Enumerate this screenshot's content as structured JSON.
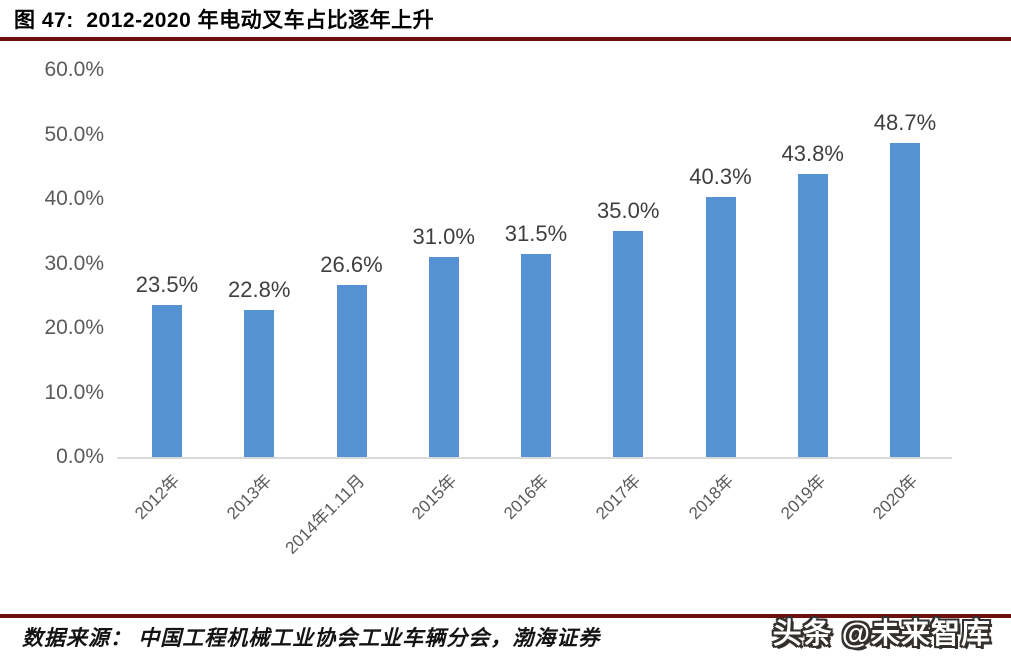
{
  "header": {
    "title": "图 47:  2012-2020 年电动叉车占比逐年上升"
  },
  "chart_data": {
    "type": "bar",
    "title": "2012-2020 年电动叉车占比逐年上升",
    "categories": [
      "2012年",
      "2013年",
      "2014年1.11月",
      "2015年",
      "2016年",
      "2017年",
      "2018年",
      "2019年",
      "2020年"
    ],
    "values": [
      23.5,
      22.8,
      26.6,
      31.0,
      31.5,
      35.0,
      40.3,
      43.8,
      48.7
    ],
    "data_labels": [
      "23.5%",
      "22.8%",
      "26.6%",
      "31.0%",
      "31.5%",
      "35.0%",
      "40.3%",
      "43.8%",
      "48.7%"
    ],
    "xlabel": "",
    "ylabel": "",
    "ylim": [
      0,
      60
    ],
    "ytick_values": [
      60,
      50,
      40,
      30,
      20,
      10,
      0
    ],
    "ytick_labels": [
      "60.0%",
      "50.0%",
      "40.0%",
      "30.0%",
      "20.0%",
      "10.0%",
      "0.0%"
    ],
    "grid": false,
    "legend": "none",
    "bar_color": "#5592d4"
  },
  "footer": {
    "source": "数据来源： 中国工程机械工业协会工业车辆分会，渤海证券",
    "watermark": "头条 @未来智库"
  },
  "colors": {
    "rule": "#70100e",
    "bar": "#5592d4",
    "axis_text": "#5a5a5a",
    "data_label_text": "#3f3f3f",
    "baseline": "#d9d9d9",
    "title_text": "#000000",
    "watermark_fill": "#ffffff",
    "watermark_outline": "#33302e"
  }
}
